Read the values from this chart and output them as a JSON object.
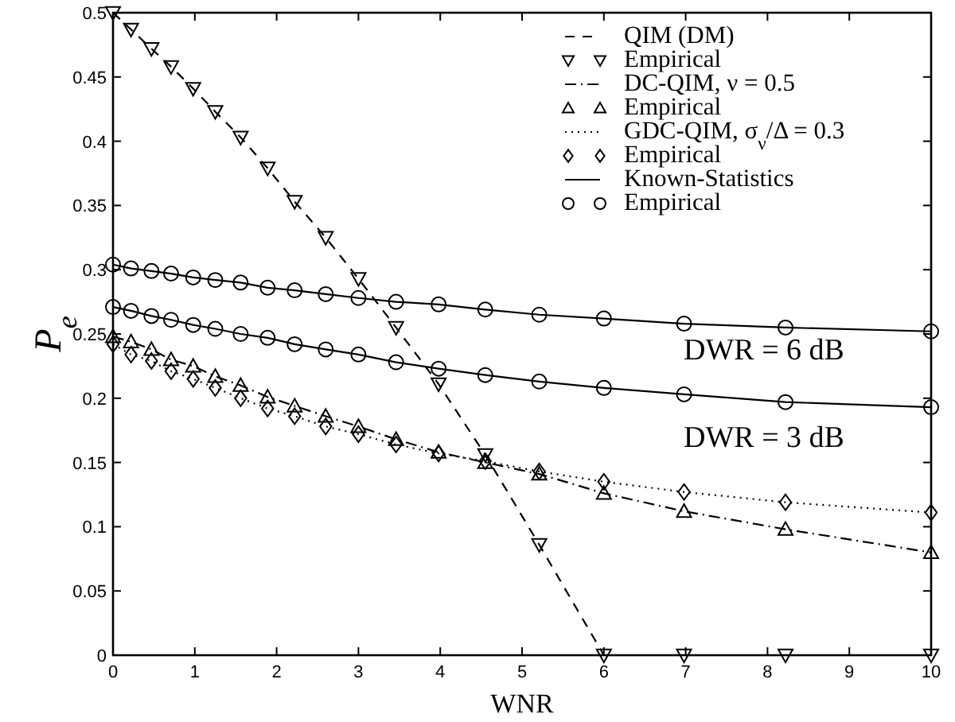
{
  "chart_data": {
    "type": "line",
    "xlabel": "WNR",
    "ylabel": "P$_{e}$",
    "x": [
      0,
      0.22,
      0.47,
      0.71,
      0.98,
      1.25,
      1.56,
      1.89,
      2.22,
      2.6,
      3.0,
      3.46,
      3.98,
      4.55,
      5.21,
      6.0,
      6.98,
      8.22,
      10
    ],
    "xlim": [
      0,
      10
    ],
    "xticks": [
      0,
      1,
      2,
      3,
      4,
      5,
      6,
      7,
      8,
      9,
      10
    ],
    "ylim": [
      0,
      0.5
    ],
    "yticks": [
      0,
      0.05,
      0.1,
      0.15,
      0.2,
      0.25,
      0.3,
      0.35,
      0.4,
      0.45,
      0.5
    ],
    "grid": false,
    "legend": "top right",
    "series": [
      {
        "name": "QIM (DM)",
        "line_style": "dashed",
        "color": "#000000",
        "values": [
          0.5,
          0.487,
          0.472,
          0.458,
          0.441,
          0.423,
          0.403,
          0.379,
          0.353,
          0.325,
          0.293,
          0.255,
          0.211,
          0.156,
          0.086,
          0,
          0,
          0,
          0
        ]
      },
      {
        "name": "Empirical",
        "type": "scatter",
        "marker": "triangle-down",
        "color": "#000000",
        "values": [
          0.5,
          0.487,
          0.472,
          0.458,
          0.441,
          0.423,
          0.403,
          0.379,
          0.353,
          0.325,
          0.293,
          0.255,
          0.211,
          0.156,
          0.086,
          0,
          0,
          0,
          0
        ]
      },
      {
        "name": "DC-QIM, ν = 0.5",
        "line_style": "dashdot",
        "color": "#000000",
        "values": [
          0.248,
          0.244,
          0.238,
          0.23,
          0.225,
          0.217,
          0.21,
          0.201,
          0.194,
          0.186,
          0.178,
          0.168,
          0.158,
          0.15,
          0.141,
          0.126,
          0.112,
          0.098,
          0.08
        ]
      },
      {
        "name": "Empirical",
        "type": "scatter",
        "marker": "triangle",
        "color": "#000000",
        "values": [
          0.248,
          0.244,
          0.238,
          0.23,
          0.225,
          0.217,
          0.21,
          0.201,
          0.194,
          0.186,
          0.178,
          0.168,
          0.158,
          0.15,
          0.141,
          0.126,
          0.112,
          0.098,
          0.08
        ]
      },
      {
        "name": "GDC-QIM, σ$_{ν}$/Δ = 0.3",
        "line_style": "dotted",
        "color": "#000000",
        "values": [
          0.242,
          0.234,
          0.229,
          0.221,
          0.215,
          0.208,
          0.2,
          0.192,
          0.186,
          0.178,
          0.172,
          0.164,
          0.157,
          0.151,
          0.143,
          0.135,
          0.127,
          0.119,
          0.111
        ]
      },
      {
        "name": "Empirical",
        "type": "scatter",
        "marker": "diamond",
        "color": "#000000",
        "values": [
          0.242,
          0.234,
          0.229,
          0.221,
          0.215,
          0.208,
          0.2,
          0.192,
          0.186,
          0.178,
          0.172,
          0.164,
          0.157,
          0.151,
          0.143,
          0.135,
          0.127,
          0.119,
          0.111
        ]
      },
      {
        "name": "Known-Statistics",
        "line_style": "solid",
        "color": "#000000",
        "values": [
          0.304,
          0.301,
          0.299,
          0.297,
          0.294,
          0.292,
          0.29,
          0.286,
          0.284,
          0.281,
          0.278,
          0.275,
          0.273,
          0.269,
          0.265,
          0.262,
          0.258,
          0.255,
          0.252
        ]
      },
      {
        "name": "Empirical",
        "type": "scatter",
        "marker": "circle",
        "color": "#000000",
        "values": [
          0.304,
          0.301,
          0.299,
          0.297,
          0.294,
          0.292,
          0.29,
          0.286,
          0.284,
          0.281,
          0.278,
          0.275,
          0.273,
          0.269,
          0.265,
          0.262,
          0.258,
          0.255,
          0.252
        ]
      },
      {
        "line_style": "solid",
        "color": "#000000",
        "values": [
          0.271,
          0.268,
          0.264,
          0.261,
          0.257,
          0.254,
          0.25,
          0.247,
          0.242,
          0.238,
          0.234,
          0.228,
          0.223,
          0.218,
          0.213,
          0.208,
          0.203,
          0.197,
          0.193
        ]
      },
      {
        "type": "scatter",
        "marker": "circle",
        "color": "#000000",
        "values": [
          0.271,
          0.268,
          0.264,
          0.261,
          0.257,
          0.254,
          0.25,
          0.247,
          0.242,
          0.238,
          0.234,
          0.228,
          0.223,
          0.218,
          0.213,
          0.208,
          0.203,
          0.197,
          0.193
        ]
      }
    ],
    "annotations": [
      "DWR = 6 dB",
      "DWR = 3 dB"
    ]
  }
}
